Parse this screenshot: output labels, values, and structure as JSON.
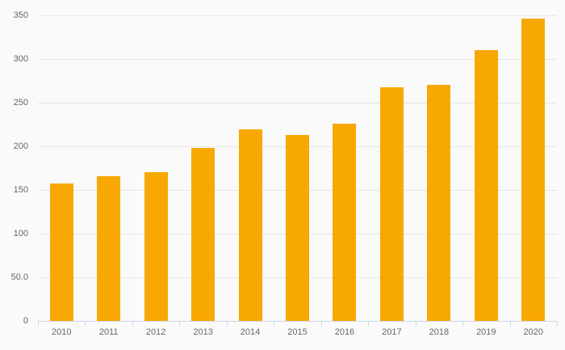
{
  "chart_data": {
    "type": "bar",
    "title": "",
    "xlabel": "",
    "ylabel": "",
    "categories": [
      "2010",
      "2011",
      "2012",
      "2013",
      "2014",
      "2015",
      "2016",
      "2017",
      "2018",
      "2019",
      "2020"
    ],
    "values": [
      157,
      166,
      170,
      198,
      219,
      213,
      226,
      268,
      270,
      310,
      346
    ],
    "ylim": [
      0,
      350
    ],
    "ytick_interval": 50,
    "ytick_labels": [
      "0",
      "50.0",
      "100",
      "150",
      "200",
      "250",
      "300",
      "350"
    ],
    "grid": true,
    "legend": "none",
    "colors": {
      "background": "#fafafa",
      "bar": "#F8A802",
      "gridline": "#e6e6e6",
      "axis_line": "#ccd6eb",
      "label": "#666666"
    }
  }
}
